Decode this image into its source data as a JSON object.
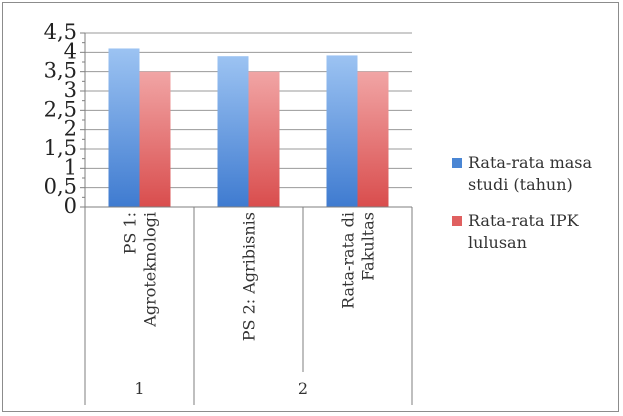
{
  "chart_data": {
    "type": "bar",
    "categories": [
      "PS 1: Agroteknologi",
      "PS 2: Agribisnis",
      "Rata-rata di Fakultas"
    ],
    "group_labels": [
      "1",
      "2"
    ],
    "series": [
      {
        "name": "Rata-rata masa studi (tahun)",
        "values": [
          4.1,
          3.9,
          3.92
        ],
        "color": "#4a86d4"
      },
      {
        "name": "Rata-rata IPK lulusan",
        "values": [
          3.5,
          3.5,
          3.5
        ],
        "color": "#e06060"
      }
    ],
    "y_ticks": [
      "0",
      "0,5",
      "1",
      "1,5",
      "2",
      "2,5",
      "3",
      "3,5",
      "4",
      "4,5"
    ],
    "ylim": [
      0,
      4.5
    ],
    "grid": true,
    "legend_position": "right"
  }
}
